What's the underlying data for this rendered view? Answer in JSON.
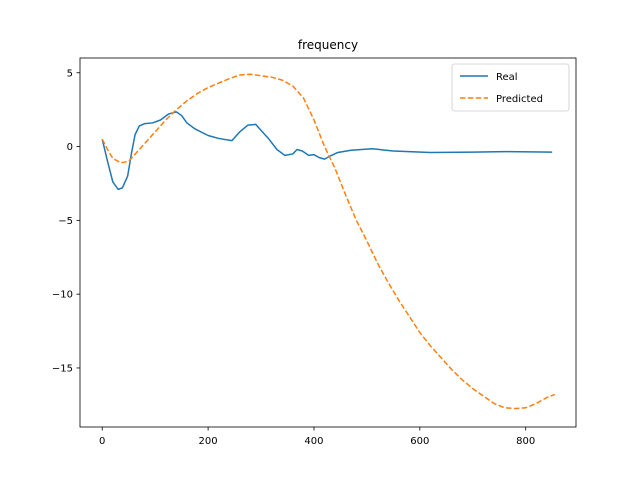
{
  "chart_data": {
    "type": "line",
    "title": "frequency",
    "xlabel": "",
    "ylabel": "",
    "xlim": [
      -42,
      895
    ],
    "ylim": [
      -19,
      6
    ],
    "xticks": [
      0,
      200,
      400,
      600,
      800
    ],
    "yticks": [
      5,
      0,
      -5,
      -10,
      -15
    ],
    "ytick_labels": [
      "5",
      "0",
      "−5",
      "−10",
      "−15"
    ],
    "grid": false,
    "legend": "top-right",
    "series": [
      {
        "name": "Real",
        "color": "#1f77b4",
        "dash": "solid",
        "x": [
          0,
          10,
          20,
          30,
          38,
          48,
          55,
          62,
          70,
          80,
          95,
          110,
          125,
          140,
          150,
          160,
          175,
          200,
          220,
          245,
          260,
          275,
          290,
          300,
          315,
          330,
          345,
          360,
          368,
          378,
          390,
          400,
          410,
          420,
          430,
          445,
          470,
          510,
          550,
          620,
          700,
          760,
          850
        ],
        "y": [
          0.5,
          -1.0,
          -2.4,
          -2.9,
          -2.8,
          -2.0,
          -0.5,
          0.8,
          1.4,
          1.55,
          1.6,
          1.8,
          2.2,
          2.35,
          2.1,
          1.6,
          1.2,
          0.75,
          0.55,
          0.4,
          1.0,
          1.45,
          1.5,
          1.1,
          0.5,
          -0.2,
          -0.6,
          -0.5,
          -0.2,
          -0.3,
          -0.6,
          -0.55,
          -0.75,
          -0.85,
          -0.65,
          -0.4,
          -0.25,
          -0.15,
          -0.3,
          -0.4,
          -0.38,
          -0.34,
          -0.38
        ]
      },
      {
        "name": "Predicted",
        "color": "#ff7f0e",
        "dash": "dashed",
        "x": [
          0,
          10,
          20,
          35,
          50,
          65,
          80,
          100,
          120,
          140,
          160,
          180,
          200,
          220,
          240,
          260,
          280,
          300,
          320,
          340,
          360,
          380,
          400,
          420,
          440,
          460,
          480,
          500,
          520,
          540,
          560,
          580,
          600,
          620,
          640,
          660,
          680,
          700,
          720,
          740,
          760,
          780,
          800,
          820,
          840,
          855
        ],
        "y": [
          0.5,
          -0.2,
          -0.8,
          -1.1,
          -1.0,
          -0.4,
          0.2,
          1.0,
          1.8,
          2.5,
          3.1,
          3.6,
          4.0,
          4.3,
          4.6,
          4.85,
          4.9,
          4.8,
          4.7,
          4.5,
          4.1,
          3.3,
          1.8,
          0.0,
          -1.5,
          -3.3,
          -5.0,
          -6.4,
          -7.9,
          -9.2,
          -10.4,
          -11.5,
          -12.6,
          -13.5,
          -14.3,
          -15.1,
          -15.8,
          -16.4,
          -16.9,
          -17.4,
          -17.7,
          -17.75,
          -17.7,
          -17.4,
          -17.0,
          -16.8
        ]
      }
    ]
  }
}
